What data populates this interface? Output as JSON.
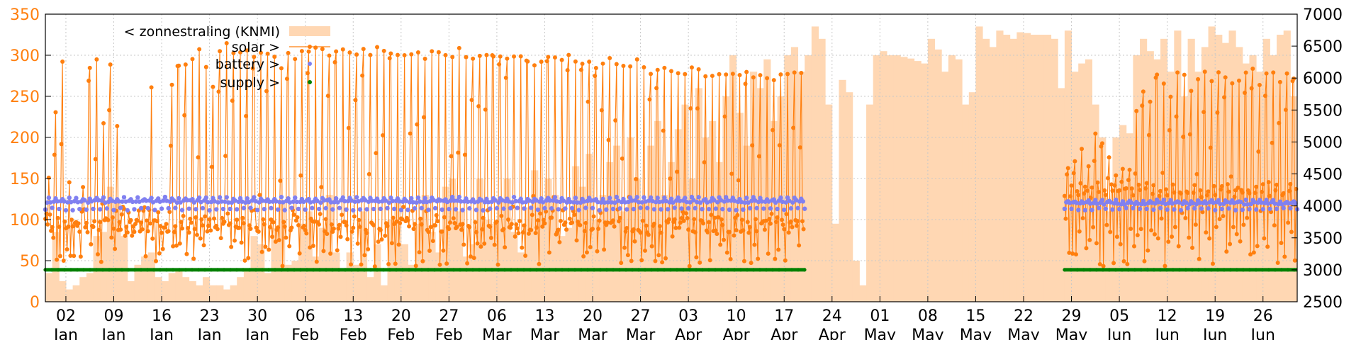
{
  "chart_data": {
    "type": "line",
    "title": "",
    "grid": true,
    "legend_position": "top-left",
    "colors": {
      "zonnestraling": "#ffd7b3",
      "solar": "#ff7f0e",
      "battery": "#8080f0",
      "supply": "#008000",
      "left_axis": "#ff7f0e"
    },
    "y_left": {
      "ylim": [
        0,
        350
      ],
      "ticks": [
        "0",
        "50",
        "100",
        "150",
        "200",
        "250",
        "300",
        "350"
      ]
    },
    "y_right": {
      "ylim": [
        2500,
        7000
      ],
      "ticks": [
        "2500",
        "3000",
        "3500",
        "4000",
        "4500",
        "5000",
        "5500",
        "6000",
        "6500",
        "7000"
      ]
    },
    "x": {
      "start": "2023-12-30",
      "end": "2024-06-30"
    },
    "x_ticks": [
      {
        "day": "02",
        "mon": "Jan"
      },
      {
        "day": "09",
        "mon": "Jan"
      },
      {
        "day": "16",
        "mon": "Jan"
      },
      {
        "day": "23",
        "mon": "Jan"
      },
      {
        "day": "30",
        "mon": "Jan"
      },
      {
        "day": "06",
        "mon": "Feb"
      },
      {
        "day": "13",
        "mon": "Feb"
      },
      {
        "day": "20",
        "mon": "Feb"
      },
      {
        "day": "27",
        "mon": "Feb"
      },
      {
        "day": "06",
        "mon": "Mar"
      },
      {
        "day": "13",
        "mon": "Mar"
      },
      {
        "day": "20",
        "mon": "Mar"
      },
      {
        "day": "27",
        "mon": "Mar"
      },
      {
        "day": "03",
        "mon": "Apr"
      },
      {
        "day": "10",
        "mon": "Apr"
      },
      {
        "day": "17",
        "mon": "Apr"
      },
      {
        "day": "24",
        "mon": "Apr"
      },
      {
        "day": "01",
        "mon": "May"
      },
      {
        "day": "08",
        "mon": "May"
      },
      {
        "day": "15",
        "mon": "May"
      },
      {
        "day": "22",
        "mon": "May"
      },
      {
        "day": "29",
        "mon": "May"
      },
      {
        "day": "05",
        "mon": "Jun"
      },
      {
        "day": "12",
        "mon": "Jun"
      },
      {
        "day": "19",
        "mon": "Jun"
      },
      {
        "day": "26",
        "mon": "Jun"
      }
    ],
    "legend": [
      "< zonnestraling (KNMI)",
      "solar >",
      "battery >",
      "supply >"
    ],
    "series": [
      {
        "name": "< zonnestraling (KNMI)",
        "type": "area",
        "axis": "left",
        "values": [
          35,
          85,
          25,
          15,
          20,
          30,
          35,
          80,
          85,
          140,
          120,
          80,
          25,
          45,
          55,
          60,
          30,
          25,
          35,
          40,
          30,
          25,
          20,
          30,
          20,
          20,
          15,
          20,
          30,
          40,
          80,
          70,
          35,
          90,
          120,
          45,
          50,
          95,
          110,
          55,
          90,
          130,
          60,
          40,
          60,
          45,
          110,
          30,
          70,
          20,
          100,
          120,
          70,
          45,
          95,
          130,
          85,
          60,
          140,
          150,
          110,
          55,
          70,
          150,
          100,
          95,
          125,
          150,
          85,
          60,
          115,
          160,
          120,
          150,
          130,
          80,
          90,
          165,
          140,
          180,
          100,
          130,
          170,
          190,
          110,
          200,
          150,
          120,
          190,
          220,
          130,
          170,
          210,
          240,
          150,
          260,
          200,
          220,
          170,
          250,
          300,
          230,
          190,
          280,
          260,
          295,
          220,
          250,
          300,
          310,
          280,
          300,
          335,
          320,
          240,
          95,
          270,
          255,
          50,
          20,
          240,
          300,
          305,
          300,
          300,
          298,
          296,
          293,
          290,
          320,
          307,
          280,
          300,
          295,
          240,
          255,
          335,
          320,
          310,
          330,
          325,
          320,
          328,
          327,
          325,
          325,
          325,
          320,
          260,
          330,
          280,
          290,
          295,
          240,
          200,
          110,
          200,
          215,
          205,
          300,
          320,
          305,
          295,
          320,
          280,
          330,
          250,
          320,
          280,
          310,
          335,
          325,
          315,
          330,
          310,
          290,
          300,
          280,
          320,
          300,
          325,
          330,
          250
        ]
      },
      {
        "name": "solar >",
        "type": "line",
        "axis": "right",
        "segments": [
          {
            "start": "2023-12-30",
            "end": "2024-04-19",
            "baseline": 3650,
            "peaks_top": [
              4500,
              5500,
              6300,
              4500,
              3800,
              4300,
              6200,
              6350,
              5400,
              6300,
              5300,
              4000,
              3900,
              3800,
              4100,
              6000,
              3900,
              3700,
              5900,
              6300,
              6300,
              6300,
              6500,
              6300,
              6000,
              6550,
              6550,
              6500,
              6450,
              6450,
              6400,
              6500,
              6400,
              6350,
              6300,
              6400,
              6400,
              6450,
              6550,
              6500,
              6500,
              6450,
              6500,
              6500,
              6450,
              6500,
              6500,
              6500,
              6500,
              6450,
              6450,
              6400,
              6500,
              6500,
              6450,
              6400,
              6450,
              6450,
              6400,
              6400,
              6500,
              6450,
              6400,
              6350,
              6400,
              6450,
              6450,
              6400,
              6450,
              6400,
              6400,
              6300,
              6400,
              6350,
              6400,
              6350,
              6400,
              6300,
              6350,
              6300,
              6300,
              6250,
              6350,
              6300,
              6250,
              6200,
              6300,
              6250,
              6200,
              6200,
              6250,
              6200,
              6200,
              6150,
              6200,
              6150,
              6100,
              6150,
              6100,
              6100,
              6100,
              6100,
              6100
            ]
          },
          {
            "start": "2024-05-27",
            "end": "2024-06-30",
            "baseline": 4200,
            "peaks_top": [
              4600,
              4800,
              5000,
              4700,
              5200,
              5100,
              4900,
              4500,
              4700,
              4600,
              5600,
              5900,
              5700,
              6100,
              6000,
              5800,
              6200,
              6100,
              5900,
              6000,
              6100,
              6050,
              6150,
              6100,
              6000,
              6050,
              6100,
              6200,
              6000,
              6150,
              6100,
              6050,
              6200,
              6100,
              6150
            ]
          }
        ]
      },
      {
        "name": "battery >",
        "type": "scatter",
        "axis": "right",
        "segments": [
          {
            "start": "2023-12-30",
            "end": "2024-04-19",
            "base": 3950,
            "high": 4120
          },
          {
            "start": "2024-05-27",
            "end": "2024-06-30",
            "base": 3950,
            "high": 4080
          }
        ]
      },
      {
        "name": "supply >",
        "type": "scatter",
        "axis": "right",
        "segments": [
          {
            "start": "2023-12-30",
            "end": "2024-04-19",
            "value": 3000
          },
          {
            "start": "2024-05-27",
            "end": "2024-06-30",
            "value": 3000
          }
        ]
      }
    ]
  }
}
